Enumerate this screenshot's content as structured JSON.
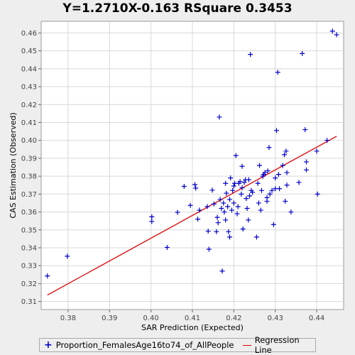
{
  "chart_data": {
    "type": "scatter",
    "title": "Y=1.2710X-0.163    RSquare 0.3453",
    "xlabel": "SAR Prediction (Expected)",
    "ylabel": "CAS Estimation (Observed)",
    "xlim": [
      0.3735,
      0.4465
    ],
    "ylim": [
      0.3055,
      0.4665
    ],
    "x_ticks": [
      "0.38",
      "0.39",
      "0.40",
      "0.41",
      "0.42",
      "0.43",
      "0.44"
    ],
    "x_tick_values": [
      0.38,
      0.39,
      0.4,
      0.41,
      0.42,
      0.43,
      0.44
    ],
    "y_ticks": [
      "0.31",
      "0.32",
      "0.33",
      "0.34",
      "0.35",
      "0.36",
      "0.37",
      "0.38",
      "0.39",
      "0.40",
      "0.41",
      "0.42",
      "0.43",
      "0.44",
      "0.45",
      "0.46"
    ],
    "y_tick_values": [
      0.31,
      0.32,
      0.33,
      0.34,
      0.35,
      0.36,
      0.37,
      0.38,
      0.39,
      0.4,
      0.41,
      0.42,
      0.43,
      0.44,
      0.45,
      0.46
    ],
    "grid": true,
    "legend_position": "bottom",
    "series": [
      {
        "name": "Proportion_FemalesAge16to74_of_AllPeople",
        "color": "#0000cc",
        "marker": "plus",
        "points": [
          [
            0.375,
            0.3243
          ],
          [
            0.3798,
            0.3353
          ],
          [
            0.4002,
            0.3573
          ],
          [
            0.4002,
            0.3547
          ],
          [
            0.4039,
            0.3402
          ],
          [
            0.4064,
            0.3598
          ],
          [
            0.408,
            0.3743
          ],
          [
            0.4095,
            0.3637
          ],
          [
            0.4106,
            0.3753
          ],
          [
            0.4108,
            0.3733
          ],
          [
            0.4113,
            0.356
          ],
          [
            0.4117,
            0.361
          ],
          [
            0.4136,
            0.363
          ],
          [
            0.4138,
            0.3493
          ],
          [
            0.414,
            0.3392
          ],
          [
            0.4148,
            0.3722
          ],
          [
            0.4152,
            0.3645
          ],
          [
            0.4158,
            0.349
          ],
          [
            0.416,
            0.357
          ],
          [
            0.4162,
            0.354
          ],
          [
            0.4165,
            0.413
          ],
          [
            0.4167,
            0.367
          ],
          [
            0.417,
            0.362
          ],
          [
            0.4172,
            0.327
          ],
          [
            0.4175,
            0.365
          ],
          [
            0.4177,
            0.36
          ],
          [
            0.418,
            0.3555
          ],
          [
            0.418,
            0.376
          ],
          [
            0.4182,
            0.3705
          ],
          [
            0.4185,
            0.363
          ],
          [
            0.4187,
            0.349
          ],
          [
            0.419,
            0.346
          ],
          [
            0.419,
            0.367
          ],
          [
            0.4192,
            0.379
          ],
          [
            0.4195,
            0.361
          ],
          [
            0.4197,
            0.372
          ],
          [
            0.42,
            0.3745
          ],
          [
            0.42,
            0.365
          ],
          [
            0.4202,
            0.376
          ],
          [
            0.4205,
            0.3915
          ],
          [
            0.4208,
            0.359
          ],
          [
            0.421,
            0.363
          ],
          [
            0.4212,
            0.376
          ],
          [
            0.4215,
            0.377
          ],
          [
            0.4218,
            0.37
          ],
          [
            0.422,
            0.3855
          ],
          [
            0.422,
            0.3735
          ],
          [
            0.4222,
            0.3505
          ],
          [
            0.4225,
            0.3765
          ],
          [
            0.4228,
            0.378
          ],
          [
            0.423,
            0.3675
          ],
          [
            0.4232,
            0.362
          ],
          [
            0.4235,
            0.3555
          ],
          [
            0.4236,
            0.378
          ],
          [
            0.4238,
            0.369
          ],
          [
            0.424,
            0.448
          ],
          [
            0.4242,
            0.372
          ],
          [
            0.4245,
            0.371
          ],
          [
            0.4255,
            0.346
          ],
          [
            0.4258,
            0.376
          ],
          [
            0.426,
            0.365
          ],
          [
            0.4262,
            0.386
          ],
          [
            0.4265,
            0.361
          ],
          [
            0.4267,
            0.372
          ],
          [
            0.427,
            0.38
          ],
          [
            0.4272,
            0.381
          ],
          [
            0.4275,
            0.382
          ],
          [
            0.428,
            0.368
          ],
          [
            0.428,
            0.366
          ],
          [
            0.4282,
            0.383
          ],
          [
            0.4285,
            0.396
          ],
          [
            0.4287,
            0.37
          ],
          [
            0.4292,
            0.372
          ],
          [
            0.4296,
            0.353
          ],
          [
            0.43,
            0.373
          ],
          [
            0.43,
            0.379
          ],
          [
            0.4303,
            0.4055
          ],
          [
            0.4306,
            0.438
          ],
          [
            0.4308,
            0.381
          ],
          [
            0.431,
            0.373
          ],
          [
            0.4318,
            0.386
          ],
          [
            0.4322,
            0.392
          ],
          [
            0.4324,
            0.366
          ],
          [
            0.4326,
            0.394
          ],
          [
            0.4328,
            0.375
          ],
          [
            0.4328,
            0.382
          ],
          [
            0.4338,
            0.36
          ],
          [
            0.4357,
            0.3765
          ],
          [
            0.4365,
            0.4485
          ],
          [
            0.4372,
            0.406
          ],
          [
            0.4375,
            0.388
          ],
          [
            0.4375,
            0.3835
          ],
          [
            0.44,
            0.394
          ],
          [
            0.4402,
            0.37
          ],
          [
            0.4425,
            0.4
          ],
          [
            0.4438,
            0.461
          ],
          [
            0.4448,
            0.459
          ]
        ]
      },
      {
        "name": "Regression Line",
        "color": "#e00000",
        "type": "line",
        "points": [
          [
            0.375,
            0.3136
          ],
          [
            0.4448,
            0.4023
          ]
        ]
      }
    ]
  },
  "legend": {
    "scatter_label": "Proportion_FemalesAge16to74_of_AllPeople",
    "line_label": "Regression Line"
  }
}
